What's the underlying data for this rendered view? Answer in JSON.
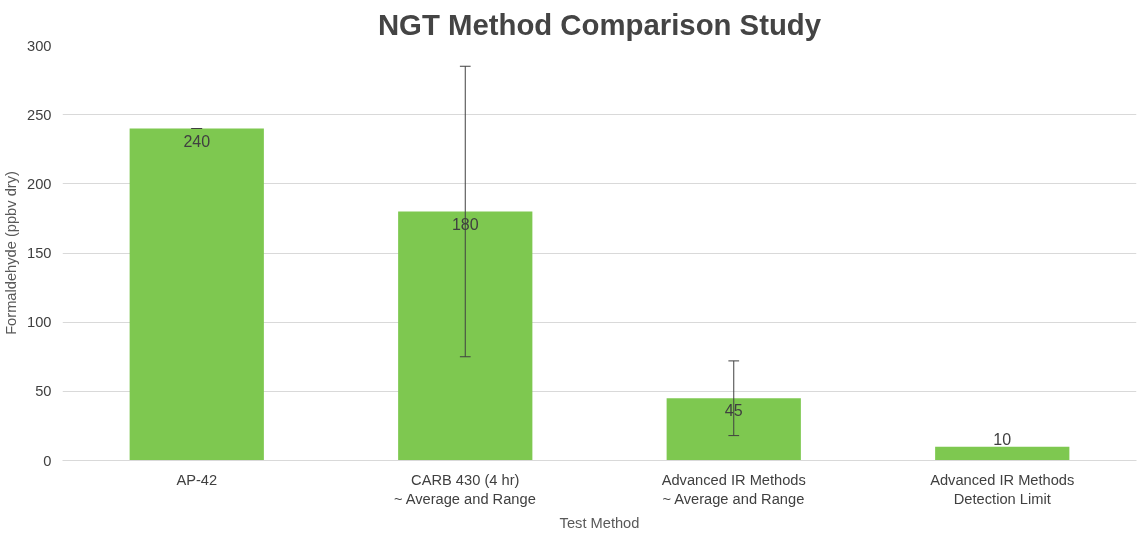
{
  "chart_data": {
    "type": "bar",
    "title": "NGT Method Comparison Study",
    "xlabel": "Test Method",
    "ylabel": "Formaldehyde (ppbv dry)",
    "categories": [
      "AP-42",
      "CARB 430 (4 hr)\n~ Average and Range",
      "Advanced IR Methods\n~ Average and Range",
      "Advanced IR Methods\nDetection Limit"
    ],
    "values": [
      240,
      180,
      45,
      10
    ],
    "color": "#7ec850",
    "errors": [
      [
        240,
        240
      ],
      [
        75,
        285
      ],
      [
        18,
        72
      ],
      null
    ],
    "data_labels": true,
    "ylim": [
      0,
      300
    ],
    "yticks": [
      0,
      50,
      100,
      150,
      200,
      250,
      300
    ],
    "grid": "y"
  }
}
